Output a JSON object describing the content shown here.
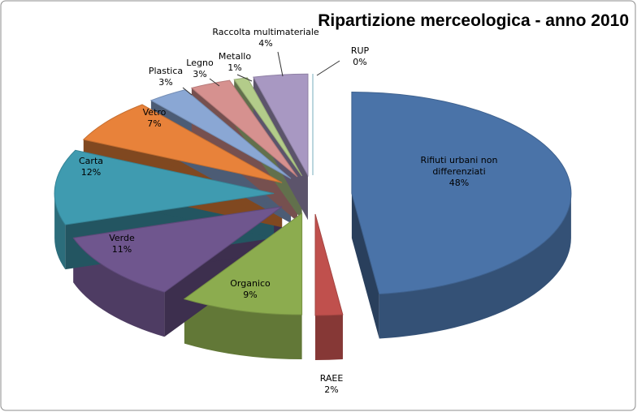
{
  "chart_data": {
    "type": "pie",
    "title": "Ripartizione merceologica - anno 2010",
    "categories": [
      "Rifiuti urbani non differenziati",
      "RAEE",
      "Organico",
      "Verde",
      "Carta",
      "Vetro",
      "Plastica",
      "Legno",
      "Metallo",
      "Raccolta multimateriale",
      "RUP"
    ],
    "values": [
      48,
      2,
      9,
      11,
      12,
      7,
      3,
      3,
      1,
      4,
      0
    ],
    "value_labels": [
      "48%",
      "2%",
      "9%",
      "11%",
      "12%",
      "7%",
      "3%",
      "3%",
      "1%",
      "4%",
      "0%"
    ],
    "colors": [
      "#4a73a8",
      "#c0504d",
      "#8cac4f",
      "#6f568e",
      "#3f9bb0",
      "#e8823a",
      "#8aa7d4",
      "#d6918f",
      "#b3cc8a",
      "#a898c2",
      "#8ccbe0"
    ]
  }
}
